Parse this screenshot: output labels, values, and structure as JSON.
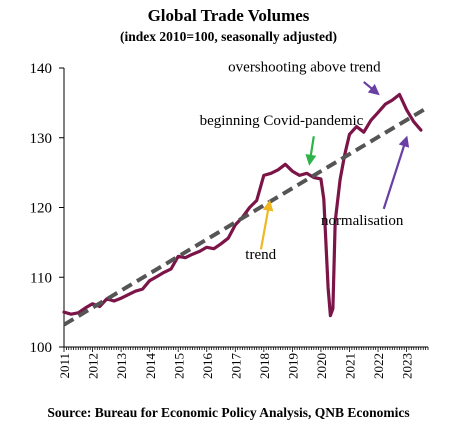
{
  "chart_data": {
    "type": "line",
    "title": "Global Trade Volumes",
    "subtitle": "(index 2010=100, seasonally adjusted)",
    "source": "Source: Bureau for Economic Policy Analysis, QNB Economics",
    "ylim": [
      100,
      140
    ],
    "yticks": [
      100,
      110,
      120,
      130,
      140
    ],
    "xlim": [
      2011,
      2023.75
    ],
    "xticks": [
      "2011",
      "2012",
      "2013",
      "2014",
      "2015",
      "2016",
      "2017",
      "2018",
      "2019",
      "2020",
      "2021",
      "2022",
      "2023"
    ],
    "grid": false,
    "series": [
      {
        "type": "line",
        "color": "#7b1548",
        "x": [
          2011.0,
          2011.25,
          2011.5,
          2011.75,
          2012.0,
          2012.25,
          2012.5,
          2012.75,
          2013.0,
          2013.25,
          2013.5,
          2013.75,
          2014.0,
          2014.25,
          2014.5,
          2014.75,
          2015.0,
          2015.25,
          2015.5,
          2015.75,
          2016.0,
          2016.25,
          2016.5,
          2016.75,
          2017.0,
          2017.25,
          2017.5,
          2017.75,
          2018.0,
          2018.25,
          2018.5,
          2018.75,
          2019.0,
          2019.25,
          2019.5,
          2019.75,
          2020.0,
          2020.1,
          2020.25,
          2020.33,
          2020.42,
          2020.5,
          2020.67,
          2020.83,
          2021.0,
          2021.25,
          2021.5,
          2021.75,
          2022.0,
          2022.25,
          2022.5,
          2022.75,
          2023.0,
          2023.25,
          2023.5
        ],
        "y": [
          105.0,
          104.7,
          104.9,
          105.6,
          106.2,
          105.8,
          106.9,
          106.6,
          107.0,
          107.5,
          108.0,
          108.3,
          109.5,
          110.1,
          110.7,
          111.2,
          113.0,
          112.8,
          113.3,
          113.7,
          114.3,
          114.1,
          114.8,
          115.6,
          117.5,
          118.6,
          120.0,
          121.0,
          124.6,
          124.9,
          125.4,
          126.2,
          125.2,
          124.6,
          124.9,
          124.3,
          124.1,
          121.2,
          108.5,
          104.5,
          105.5,
          118.0,
          124.0,
          127.5,
          130.5,
          131.6,
          130.8,
          132.5,
          133.6,
          134.8,
          135.4,
          136.2,
          134.0,
          132.3,
          131.1
        ]
      },
      {
        "type": "trend-dashed",
        "color": "#555555",
        "x": [
          2011.0,
          2023.6
        ],
        "y": [
          103.2,
          134.0
        ]
      }
    ],
    "annotations": [
      {
        "label": "overshooting above trend",
        "text_x": 2016.75,
        "text_y": 139.5,
        "arrow_from": [
          2021.5,
          138.0
        ],
        "arrow_to": [
          2022.0,
          136.3
        ],
        "color": "#6a3fa3"
      },
      {
        "label": "beginning  Covid-pandemic",
        "text_x": 2015.75,
        "text_y": 131.8,
        "arrow_from": [
          2019.75,
          130.2
        ],
        "arrow_to": [
          2019.6,
          126.3
        ],
        "color": "#2db34a"
      },
      {
        "label": "normalisation",
        "text_x": 2020.0,
        "text_y": 117.5,
        "arrow_from": [
          2022.2,
          119.8
        ],
        "arrow_to": [
          2023.0,
          130.0
        ],
        "color": "#6a3fa3"
      },
      {
        "label": "trend",
        "text_x": 2017.35,
        "text_y": 112.6,
        "arrow_from": [
          2017.9,
          114.0
        ],
        "arrow_to": [
          2018.2,
          120.8
        ],
        "color": "#f0b820"
      }
    ]
  }
}
